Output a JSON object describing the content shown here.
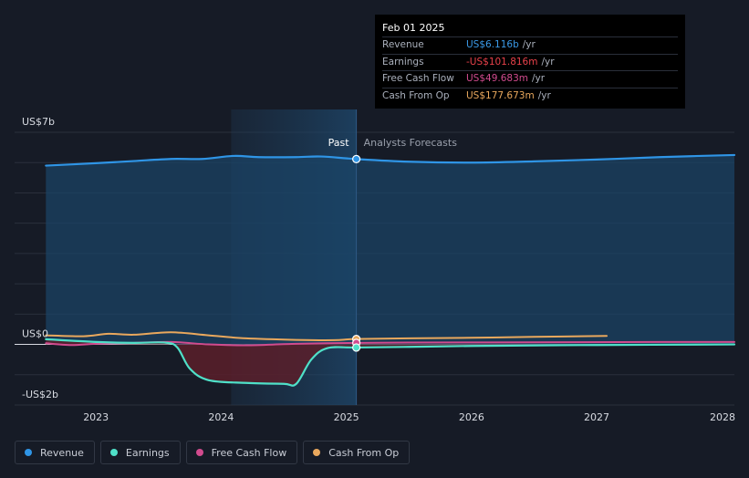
{
  "tooltip": {
    "date": "Feb 01 2025",
    "rows": [
      {
        "label": "Revenue",
        "value": "US$6.116b",
        "unit": "/yr",
        "color": "#3a9ae8"
      },
      {
        "label": "Earnings",
        "value": "-US$101.816m",
        "unit": "/yr",
        "color": "#e8414a"
      },
      {
        "label": "Free Cash Flow",
        "value": "US$49.683m",
        "unit": "/yr",
        "color": "#d14b8e"
      },
      {
        "label": "Cash From Op",
        "value": "US$177.673m",
        "unit": "/yr",
        "color": "#e9a85d"
      }
    ]
  },
  "legend": [
    {
      "label": "Revenue",
      "color": "#2f95e6"
    },
    {
      "label": "Earnings",
      "color": "#4fe0c8"
    },
    {
      "label": "Free Cash Flow",
      "color": "#d14b8e"
    },
    {
      "label": "Cash From Op",
      "color": "#e9a85d"
    }
  ],
  "chart_data": {
    "type": "line",
    "past_label": "Past",
    "forecast_label": "Analysts Forecasts",
    "y_tick_labels": [
      {
        "value": 7,
        "label": "US$7b"
      },
      {
        "value": 0,
        "label": "US$0"
      },
      {
        "value": -2,
        "label": "-US$2b"
      }
    ],
    "ylim": [
      -2,
      7
    ],
    "x_tick_labels": [
      "2023",
      "2024",
      "2025",
      "2026",
      "2027",
      "2028"
    ],
    "xlim": [
      2022.35,
      2028.1
    ],
    "divider_x": 2025.08,
    "shaded_past_start": 2024.08,
    "grid": true,
    "series": [
      {
        "name": "Revenue",
        "key": "revenue",
        "color": "#2f95e6",
        "fill": true,
        "x": [
          2022.6,
          2023.0,
          2023.3,
          2023.6,
          2023.85,
          2024.1,
          2024.3,
          2024.6,
          2024.8,
          2025.08,
          2025.5,
          2026.0,
          2026.5,
          2027.0,
          2027.5,
          2028.1
        ],
        "y": [
          5.9,
          5.98,
          6.05,
          6.12,
          6.12,
          6.22,
          6.18,
          6.18,
          6.2,
          6.116,
          6.03,
          6.0,
          6.04,
          6.1,
          6.18,
          6.25
        ]
      },
      {
        "name": "Earnings",
        "key": "earnings",
        "color": "#4fe0c8",
        "fill": true,
        "x": [
          2022.6,
          2023.0,
          2023.3,
          2023.55,
          2023.65,
          2023.75,
          2023.9,
          2024.2,
          2024.5,
          2024.6,
          2024.72,
          2024.85,
          2025.08,
          2025.5,
          2026.0,
          2027.0,
          2028.1
        ],
        "y": [
          0.17,
          0.08,
          0.05,
          0.06,
          -0.1,
          -0.8,
          -1.18,
          -1.27,
          -1.3,
          -1.3,
          -0.5,
          -0.12,
          -0.102,
          -0.08,
          -0.05,
          -0.02,
          0.0
        ]
      },
      {
        "name": "Free Cash Flow",
        "key": "fcf",
        "color": "#d14b8e",
        "fill": false,
        "x": [
          2022.6,
          2022.8,
          2023.0,
          2023.3,
          2023.6,
          2023.9,
          2024.2,
          2024.6,
          2025.08,
          2025.5,
          2026.5,
          2027.5,
          2028.1
        ],
        "y": [
          0.04,
          -0.02,
          0.02,
          0.05,
          0.08,
          0.0,
          -0.03,
          0.02,
          0.05,
          0.06,
          0.07,
          0.08,
          0.08
        ]
      },
      {
        "name": "Cash From Op",
        "key": "cfo",
        "color": "#e9a85d",
        "fill": false,
        "x": [
          2022.6,
          2022.9,
          2023.1,
          2023.3,
          2023.6,
          2023.9,
          2024.2,
          2024.6,
          2024.9,
          2025.08,
          2025.5,
          2026.0,
          2026.5,
          2027.08
        ],
        "y": [
          0.3,
          0.27,
          0.35,
          0.32,
          0.4,
          0.3,
          0.2,
          0.15,
          0.14,
          0.18,
          0.2,
          0.22,
          0.25,
          0.28
        ]
      }
    ],
    "markers": [
      {
        "series": "revenue",
        "x": 2025.08,
        "y": 6.116
      },
      {
        "series": "cfo",
        "x": 2025.08,
        "y": 0.178
      },
      {
        "series": "fcf",
        "x": 2025.08,
        "y": 0.05
      },
      {
        "series": "earnings",
        "x": 2025.08,
        "y": -0.102
      }
    ]
  }
}
